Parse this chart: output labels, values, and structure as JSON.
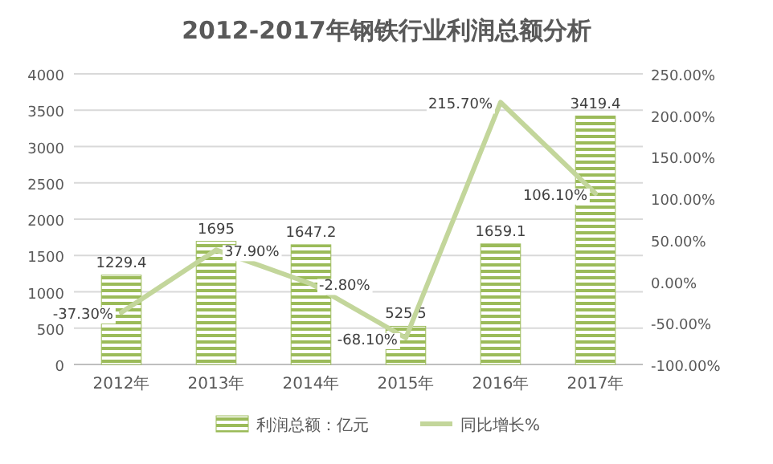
{
  "chart_data": {
    "type": "bar",
    "title": "2012-2017年钢铁行业利润总额分析",
    "categories": [
      "2012年",
      "2013年",
      "2014年",
      "2015年",
      "2016年",
      "2017年"
    ],
    "series": [
      {
        "name": "利润总额：亿元",
        "color": "#9bbb59",
        "values": [
          1229.4,
          1695,
          1647.2,
          525.5,
          1659.1,
          3419.4
        ],
        "value_labels": [
          "1229.4",
          "1695",
          "1647.2",
          "525.5",
          "1659.1",
          "3419.4"
        ]
      },
      {
        "name": "同比增长%",
        "type": "line",
        "axis": "y2",
        "color": "#c3d69b",
        "values": [
          -37.3,
          37.9,
          -2.8,
          -68.1,
          215.7,
          106.1
        ],
        "value_labels": [
          "-37.30%",
          "37.90%",
          "-2.80%",
          "-68.10%",
          "215.70%",
          "106.10%"
        ]
      }
    ],
    "ylim": [
      0,
      4000
    ],
    "yticks": [
      0,
      500,
      1000,
      1500,
      2000,
      2500,
      3000,
      3500,
      4000
    ],
    "y2lim": [
      -100,
      250
    ],
    "y2ticks": [
      {
        "value": -100,
        "label": "-100.00%"
      },
      {
        "value": -50,
        "label": "-50.00%"
      },
      {
        "value": 0,
        "label": "0.00%"
      },
      {
        "value": 50,
        "label": "50.00%"
      },
      {
        "value": 100,
        "label": "100.00%"
      },
      {
        "value": 150,
        "label": "150.00%"
      },
      {
        "value": 200,
        "label": "200.00%"
      },
      {
        "value": 250,
        "label": "250.00%"
      }
    ],
    "grid": "y",
    "legend": "bottom",
    "marker": "none"
  }
}
